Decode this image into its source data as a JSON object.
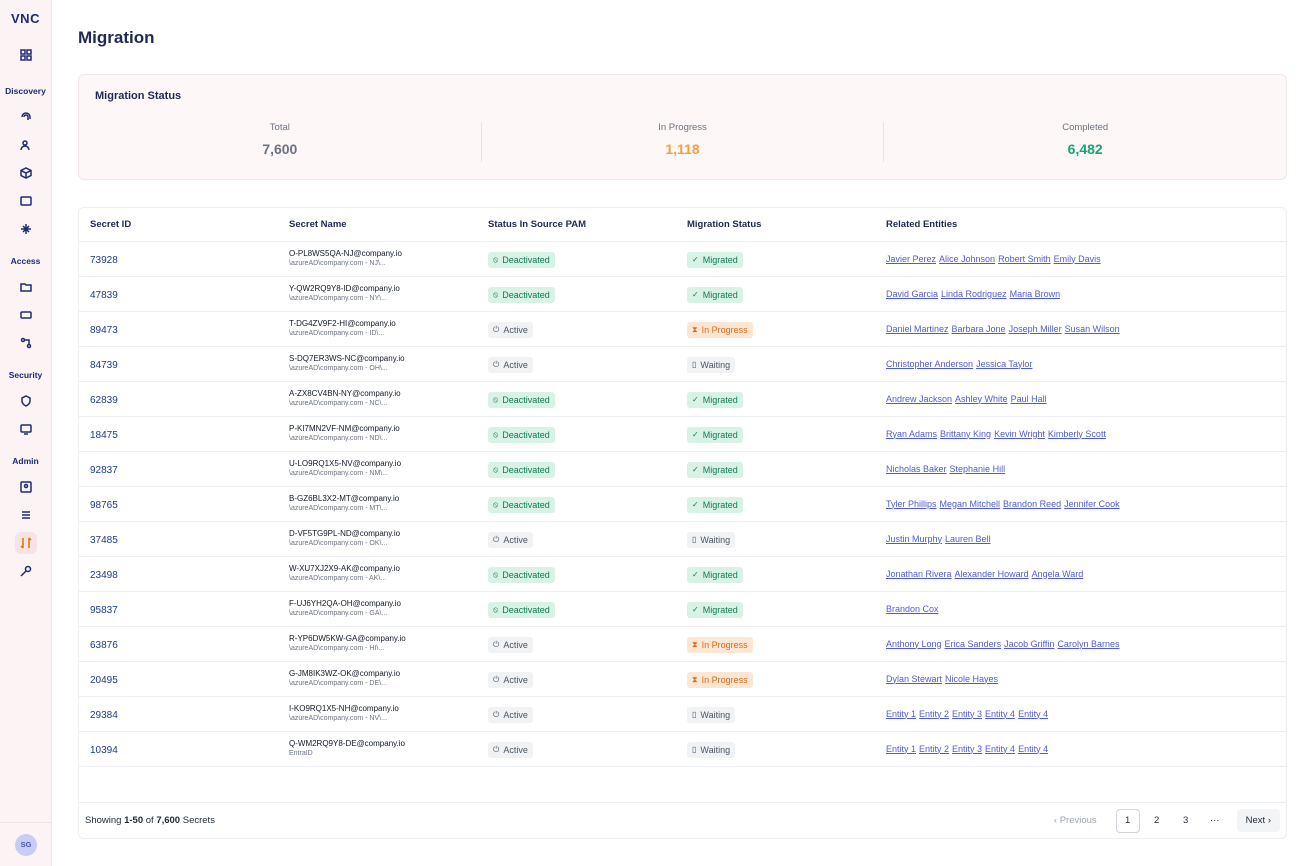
{
  "app": {
    "logo": "VNC",
    "avatar_initials": "SG"
  },
  "sidebar": {
    "sections": [
      "Discovery",
      "Access",
      "Security",
      "Admin"
    ]
  },
  "page": {
    "title": "Migration"
  },
  "status": {
    "title": "Migration Status",
    "total_label": "Total",
    "total_value": "7,600",
    "progress_label": "In Progress",
    "progress_value": "1,118",
    "completed_label": "Completed",
    "completed_value": "6,482"
  },
  "table": {
    "headers": [
      "Secret ID",
      "Secret Name",
      "Status In Source PAM",
      "Migration Status",
      "Related Entities"
    ],
    "rows": [
      {
        "id": "73928",
        "name": "O-PL8WS5QA-NJ@company.io",
        "path": "\\azureAD\\company.com - NJ\\...",
        "src": "Deactivated",
        "mig": "Migrated",
        "entities": [
          "Javier Perez",
          "Alice Johnson",
          "Robert Smith",
          "Emily Davis"
        ]
      },
      {
        "id": "47839",
        "name": "Y-QW2RQ9Y8-ID@company.io",
        "path": "\\azureAD\\company.com - NY\\...",
        "src": "Deactivated",
        "mig": "Migrated",
        "entities": [
          "David Garcia",
          "Linda Rodriguez",
          "Maria Brown"
        ]
      },
      {
        "id": "89473",
        "name": "T-DG4ZV9F2-HI@company.io",
        "path": "\\azureAD\\company.com - ID\\...",
        "src": "Active",
        "mig": "In Progress",
        "entities": [
          "Daniel Martinez",
          "Barbara Jone",
          "Joseph Miller",
          "Susan Wilson"
        ]
      },
      {
        "id": "84739",
        "name": "S-DQ7ER3WS-NC@company.io",
        "path": "\\azureAD\\company.com - OH\\...",
        "src": "Active",
        "mig": "Waiting",
        "entities": [
          "Christopher Anderson",
          "Jessica Taylor"
        ]
      },
      {
        "id": "62839",
        "name": "A-ZX8CV4BN-NY@company.io",
        "path": "\\azureAD\\company.com - NC\\...",
        "src": "Deactivated",
        "mig": "Migrated",
        "entities": [
          "Andrew Jackson",
          "Ashley White",
          "Paul Hall"
        ]
      },
      {
        "id": "18475",
        "name": "P-KI7MN2VF-NM@company.io",
        "path": "\\azureAD\\company.com - ND\\...",
        "src": "Deactivated",
        "mig": "Migrated",
        "entities": [
          "Ryan Adams",
          "Brittany King",
          "Kevin Wright",
          "Kimberly Scott"
        ]
      },
      {
        "id": "92837",
        "name": "U-LO9RQ1X5-NV@company.io",
        "path": "\\azureAD\\company.com - NM\\...",
        "src": "Deactivated",
        "mig": "Migrated",
        "entities": [
          "Nicholas Baker",
          "Stephanie Hill"
        ]
      },
      {
        "id": "98765",
        "name": "B-GZ6BL3X2-MT@company.io",
        "path": "\\azureAD\\company.com - MT\\...",
        "src": "Deactivated",
        "mig": "Migrated",
        "entities": [
          "Tyler Phillips",
          "Megan Mitchell",
          "Brandon Reed",
          "Jennifer Cook"
        ]
      },
      {
        "id": "37485",
        "name": "D-VF5TG9PL-ND@company.io",
        "path": "\\azureAD\\company.com - OK\\...",
        "src": "Active",
        "mig": "Waiting",
        "entities": [
          "Justin Murphy",
          "Lauren Bell"
        ]
      },
      {
        "id": "23498",
        "name": "W-XU7XJ2X9-AK@company.io",
        "path": "\\azureAD\\company.com - AK\\...",
        "src": "Deactivated",
        "mig": "Migrated",
        "entities": [
          "Jonathan Rivera",
          "Alexander Howard",
          "Angela Ward"
        ]
      },
      {
        "id": "95837",
        "name": "F-UJ6YH2QA-OH@company.io",
        "path": "\\azureAD\\company.com - GA\\...",
        "src": "Deactivated",
        "mig": "Migrated",
        "entities": [
          "Brandon Cox"
        ]
      },
      {
        "id": "63876",
        "name": "R-YP6DW5KW-GA@company.io",
        "path": "\\azureAD\\company.com - HI\\...",
        "src": "Active",
        "mig": "In Progress",
        "entities": [
          "Anthony Long",
          "Erica Sanders",
          "Jacob Griffin",
          "Carolyn Barnes"
        ]
      },
      {
        "id": "20495",
        "name": "G-JM8IK3WZ-OK@company.io",
        "path": "\\azureAD\\company.com - DE\\...",
        "src": "Active",
        "mig": "In Progress",
        "entities": [
          "Dylan Stewart",
          "Nicole Hayes"
        ]
      },
      {
        "id": "29384",
        "name": "I-KO9RQ1X5-NH@company.io",
        "path": "\\azureAD\\company.com - NV\\...",
        "src": "Active",
        "mig": "Waiting",
        "entities": [
          "Entity 1",
          "Entity 2",
          "Entity 3",
          "Entity 4",
          "Entity 4"
        ]
      },
      {
        "id": "10394",
        "name": "Q-WM2RQ9Y8-DE@company.io",
        "path": "EntraID",
        "src": "Active",
        "mig": "Waiting",
        "entities": [
          "Entity 1",
          "Entity 2",
          "Entity 3",
          "Entity 4",
          "Entity 4"
        ]
      }
    ]
  },
  "footer": {
    "showing_prefix": "Showing ",
    "range": "1-50",
    "of": " of ",
    "total": "7,600",
    "suffix": " Secrets",
    "prev_label": "‹ Previous",
    "pages": [
      "1",
      "2",
      "3",
      "···"
    ],
    "next_label": "Next ›"
  },
  "colors": {
    "accent": "#1e2a78",
    "progress": "#f59e3b",
    "completed": "#16a37a",
    "link": "#4f5bd5"
  }
}
